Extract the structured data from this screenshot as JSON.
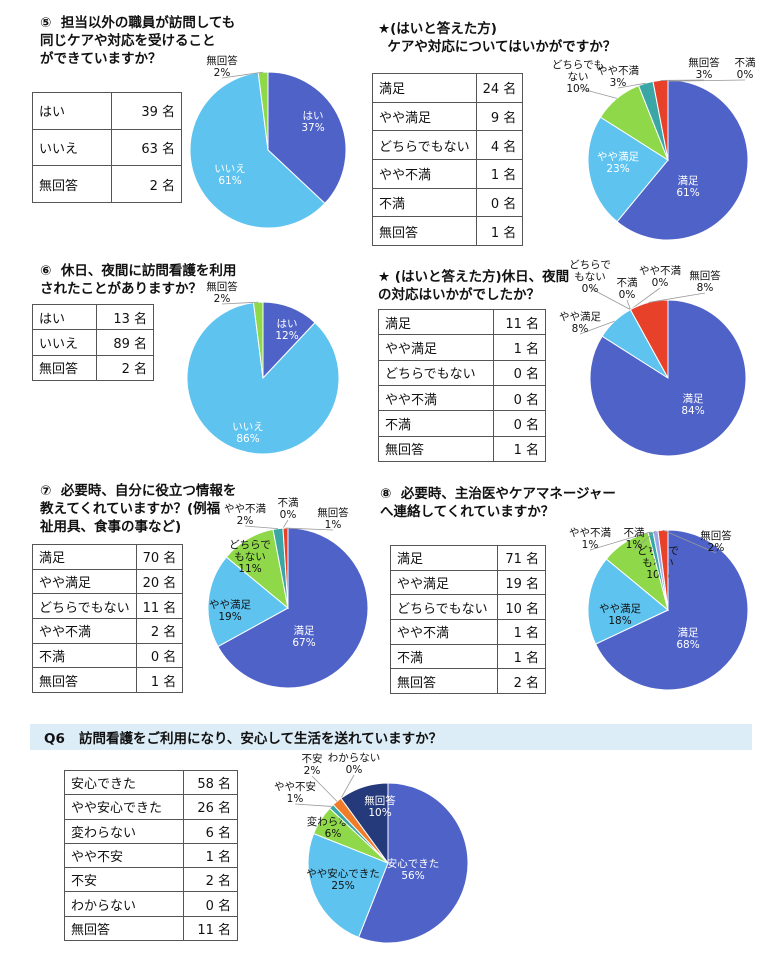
{
  "sections": [
    {
      "id": "q5",
      "question": "⑤  担当以外の職員が訪問しても\n同じケアや対応を受けること\nができていますか？",
      "rows": [
        {
          "label": "はい",
          "value": "39 名"
        },
        {
          "label": "いいえ",
          "value": "63 名"
        },
        {
          "label": "無回答",
          "value": "2 名"
        }
      ]
    },
    {
      "id": "q5s",
      "question": "★(はいと答えた方)\n  ケアや対応についてはいかがですか？",
      "rows": [
        {
          "label": "満足",
          "value": "24 名"
        },
        {
          "label": "やや満足",
          "value": "9 名"
        },
        {
          "label": "どちらでもない",
          "value": "4 名"
        },
        {
          "label": "やや不満",
          "value": "1 名"
        },
        {
          "label": "不満",
          "value": "0 名"
        },
        {
          "label": "無回答",
          "value": "1 名"
        }
      ]
    },
    {
      "id": "q6",
      "question": "⑥  休日、夜間に訪問看護を利用\nされたことがありますか？",
      "rows": [
        {
          "label": "はい",
          "value": "13 名"
        },
        {
          "label": "いいえ",
          "value": "89 名"
        },
        {
          "label": "無回答",
          "value": "2 名"
        }
      ]
    },
    {
      "id": "q6s",
      "question": "★ (はいと答えた方)休日、夜間\nの対応はいかがでしたか？",
      "rows": [
        {
          "label": "満足",
          "value": "11 名"
        },
        {
          "label": "やや満足",
          "value": "1 名"
        },
        {
          "label": "どちらでもない",
          "value": "0 名"
        },
        {
          "label": "やや不満",
          "value": "0 名"
        },
        {
          "label": "不満",
          "value": "0 名"
        },
        {
          "label": "無回答",
          "value": "1 名"
        }
      ]
    },
    {
      "id": "q7",
      "question": "⑦  必要時、自分に役立つ情報を\n教えてくれていますか？(例福\n祉用具、食事の事など)",
      "rows": [
        {
          "label": "満足",
          "value": "70 名"
        },
        {
          "label": "やや満足",
          "value": "20 名"
        },
        {
          "label": "どちらでもない",
          "value": "11 名"
        },
        {
          "label": "やや不満",
          "value": "2 名"
        },
        {
          "label": "不満",
          "value": "0 名"
        },
        {
          "label": "無回答",
          "value": "1 名"
        }
      ]
    },
    {
      "id": "q8",
      "question": "⑧  必要時、主治医やケアマネージャー\nへ連絡してくれていますか？",
      "rows": [
        {
          "label": "満足",
          "value": "71 名"
        },
        {
          "label": "やや満足",
          "value": "19 名"
        },
        {
          "label": "どちらでもない",
          "value": "10 名"
        },
        {
          "label": "やや不満",
          "value": "1 名"
        },
        {
          "label": "不満",
          "value": "1 名"
        },
        {
          "label": "無回答",
          "value": "2 名"
        }
      ]
    },
    {
      "id": "q9",
      "question": "Q6   訪問看護をご利用になり、安心して生活を送れていますか？",
      "rows": [
        {
          "label": "安心できた",
          "value": "58 名"
        },
        {
          "label": "やや安心できた",
          "value": "26 名"
        },
        {
          "label": "変わらない",
          "value": "6 名"
        },
        {
          "label": "やや不安",
          "value": "1 名"
        },
        {
          "label": "不安",
          "value": "2 名"
        },
        {
          "label": "わからない",
          "value": "0 名"
        },
        {
          "label": "無回答",
          "value": "11 名"
        }
      ]
    }
  ],
  "chart_data": [
    {
      "type": "pie",
      "colors": [
        "#4f62c8",
        "#5ec3ef",
        "#8fd84a"
      ],
      "slices": [
        {
          "label": "はい",
          "pct": "37%",
          "value": 37
        },
        {
          "label": "いいえ",
          "pct": "61%",
          "value": 61
        },
        {
          "label": "無回答",
          "pct": "2%",
          "value": 2
        }
      ]
    },
    {
      "type": "pie",
      "colors": [
        "#4f62c8",
        "#5ec3ef",
        "#8fd84a",
        "#3aa6a6",
        "#9aa8e6",
        "#e8412a"
      ],
      "slices": [
        {
          "label": "満足",
          "pct": "61%",
          "value": 61
        },
        {
          "label": "やや満足",
          "pct": "23%",
          "value": 23
        },
        {
          "label": "どちらでも\nない",
          "pct": "10%",
          "value": 10
        },
        {
          "label": "やや不満",
          "pct": "3%",
          "value": 3
        },
        {
          "label": "不満",
          "pct": "0%",
          "value": 0
        },
        {
          "label": "無回答",
          "pct": "3%",
          "value": 3
        }
      ]
    },
    {
      "type": "pie",
      "colors": [
        "#4f62c8",
        "#5ec3ef",
        "#8fd84a"
      ],
      "slices": [
        {
          "label": "はい",
          "pct": "12%",
          "value": 12
        },
        {
          "label": "いいえ",
          "pct": "86%",
          "value": 86
        },
        {
          "label": "無回答",
          "pct": "2%",
          "value": 2
        }
      ]
    },
    {
      "type": "pie",
      "colors": [
        "#4f62c8",
        "#5ec3ef",
        "#8fd84a",
        "#3aa6a6",
        "#9aa8e6",
        "#e8412a"
      ],
      "slices": [
        {
          "label": "満足",
          "pct": "84%",
          "value": 84
        },
        {
          "label": "やや満足",
          "pct": "8%",
          "value": 8
        },
        {
          "label": "どちらで\nもない",
          "pct": "0%",
          "value": 0
        },
        {
          "label": "やや不満",
          "pct": "0%",
          "value": 0
        },
        {
          "label": "不満",
          "pct": "0%",
          "value": 0
        },
        {
          "label": "無回答",
          "pct": "8%",
          "value": 8
        }
      ]
    },
    {
      "type": "pie",
      "colors": [
        "#4f62c8",
        "#5ec3ef",
        "#8fd84a",
        "#3aa6a6",
        "#9aa8e6",
        "#e8412a"
      ],
      "slices": [
        {
          "label": "満足",
          "pct": "67%",
          "value": 67
        },
        {
          "label": "やや満足",
          "pct": "19%",
          "value": 19
        },
        {
          "label": "どちらで\nもない",
          "pct": "11%",
          "value": 11
        },
        {
          "label": "やや不満",
          "pct": "2%",
          "value": 2
        },
        {
          "label": "不満",
          "pct": "0%",
          "value": 0
        },
        {
          "label": "無回答",
          "pct": "1%",
          "value": 1
        }
      ]
    },
    {
      "type": "pie",
      "colors": [
        "#4f62c8",
        "#5ec3ef",
        "#8fd84a",
        "#3aa6a6",
        "#9aa8e6",
        "#e8412a"
      ],
      "slices": [
        {
          "label": "満足",
          "pct": "68%",
          "value": 68
        },
        {
          "label": "やや満足",
          "pct": "18%",
          "value": 18
        },
        {
          "label": "どちらで\nもない",
          "pct": "10%",
          "value": 10
        },
        {
          "label": "やや不満",
          "pct": "1%",
          "value": 1
        },
        {
          "label": "不満",
          "pct": "1%",
          "value": 1
        },
        {
          "label": "無回答",
          "pct": "2%",
          "value": 2
        }
      ]
    },
    {
      "type": "pie",
      "colors": [
        "#4f62c8",
        "#5ec3ef",
        "#8fd84a",
        "#3aa6a6",
        "#f07c2a",
        "#9aa8e6",
        "#253a7a"
      ],
      "slices": [
        {
          "label": "安心できた",
          "pct": "56%",
          "value": 56
        },
        {
          "label": "やや安心できた",
          "pct": "25%",
          "value": 25
        },
        {
          "label": "変わらない",
          "pct": "6%",
          "value": 6
        },
        {
          "label": "やや不安",
          "pct": "1%",
          "value": 1
        },
        {
          "label": "不安",
          "pct": "2%",
          "value": 2
        },
        {
          "label": "わからない",
          "pct": "0%",
          "value": 0
        },
        {
          "label": "無回答",
          "pct": "10%",
          "value": 10
        }
      ]
    }
  ]
}
